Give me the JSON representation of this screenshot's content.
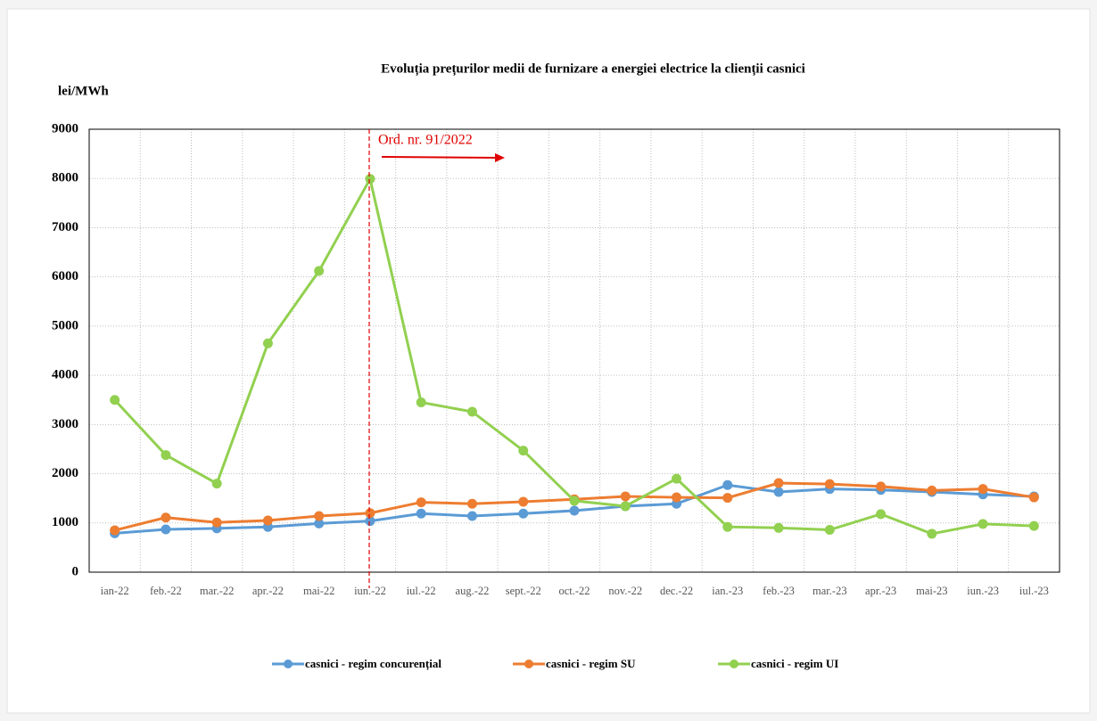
{
  "chart_data": {
    "type": "line",
    "title": "Evoluția prețurilor medii de furnizare a energiei electrice la clienții casnici",
    "y_label": "lei/MWh",
    "annotation": "Ord. nr. 91/2022",
    "categories": [
      "ian-22",
      "feb.-22",
      "mar.-22",
      "apr.-22",
      "mai-22",
      "iun.-22",
      "iul.-22",
      "aug.-22",
      "sept.-22",
      "oct.-22",
      "nov.-22",
      "dec.-22",
      "ian.-23",
      "feb.-23",
      "mar.-23",
      "apr.-23",
      "mai-23",
      "iun.-23",
      "iul.-23"
    ],
    "series": [
      {
        "name": "casnici - regim concurențial",
        "color": "#5b9bd5",
        "values": [
          790,
          870,
          890,
          920,
          990,
          1040,
          1190,
          1140,
          1190,
          1250,
          1340,
          1390,
          1770,
          1630,
          1690,
          1670,
          1630,
          1580,
          1540
        ]
      },
      {
        "name": "casnici - regim SU",
        "color": "#ed7d31",
        "values": [
          850,
          1110,
          1010,
          1050,
          1140,
          1200,
          1420,
          1390,
          1430,
          1480,
          1540,
          1520,
          1510,
          1810,
          1790,
          1740,
          1660,
          1690,
          1520
        ]
      },
      {
        "name": "casnici - regim UI",
        "color": "#92d050",
        "values": [
          3500,
          2380,
          1800,
          4650,
          6120,
          7990,
          3450,
          3260,
          2470,
          1450,
          1340,
          1900,
          920,
          900,
          860,
          1180,
          780,
          980,
          940
        ]
      }
    ],
    "ylim": [
      0,
      9000
    ],
    "yticks": [
      0,
      1000,
      2000,
      3000,
      4000,
      5000,
      6000,
      7000,
      8000,
      9000
    ],
    "grid": true
  }
}
